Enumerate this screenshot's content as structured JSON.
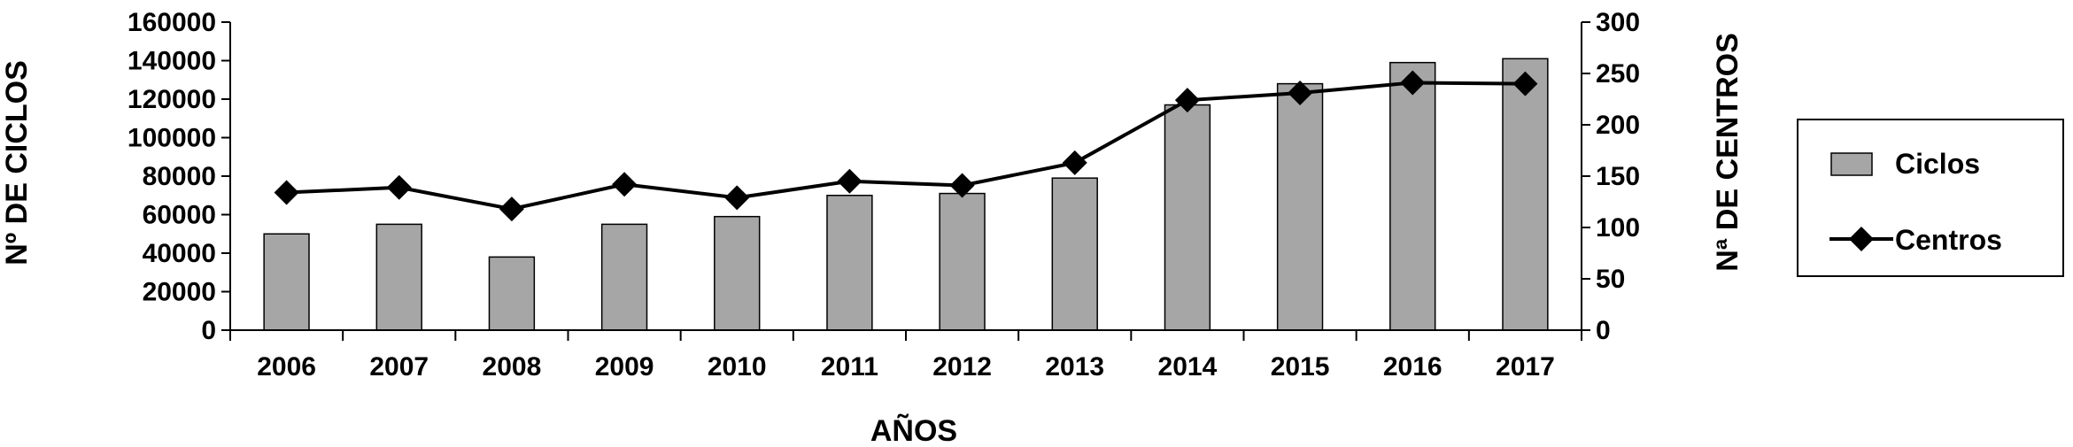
{
  "chart_data": {
    "type": "bar+line",
    "categories": [
      "2006",
      "2007",
      "2008",
      "2009",
      "2010",
      "2011",
      "2012",
      "2013",
      "2014",
      "2015",
      "2016",
      "2017"
    ],
    "series": [
      {
        "name": "Ciclos",
        "type": "bar",
        "axis": "left",
        "color": "#a6a6a6",
        "values": [
          50000,
          55000,
          38000,
          55000,
          59000,
          70000,
          71000,
          79000,
          117000,
          128000,
          139000,
          141000
        ]
      },
      {
        "name": "Centros",
        "type": "line",
        "axis": "right",
        "color": "#000000",
        "marker": "diamond",
        "values": [
          134,
          139,
          118,
          142,
          129,
          145,
          141,
          163,
          224,
          231,
          241,
          240
        ]
      }
    ],
    "xlabel": "AÑOS",
    "ylabel_left": "Nº DE CICLOS",
    "ylabel_right": "Nª DE CENTROS",
    "ylim_left": [
      0,
      160000
    ],
    "yticks_left": [
      "0",
      "20000",
      "40000",
      "60000",
      "80000",
      "100000",
      "120000",
      "140000",
      "160000"
    ],
    "ylim_right": [
      0,
      300
    ],
    "yticks_right": [
      "0",
      "50",
      "100",
      "150",
      "200",
      "250",
      "300"
    ],
    "grid": false,
    "legend_position": "right"
  }
}
